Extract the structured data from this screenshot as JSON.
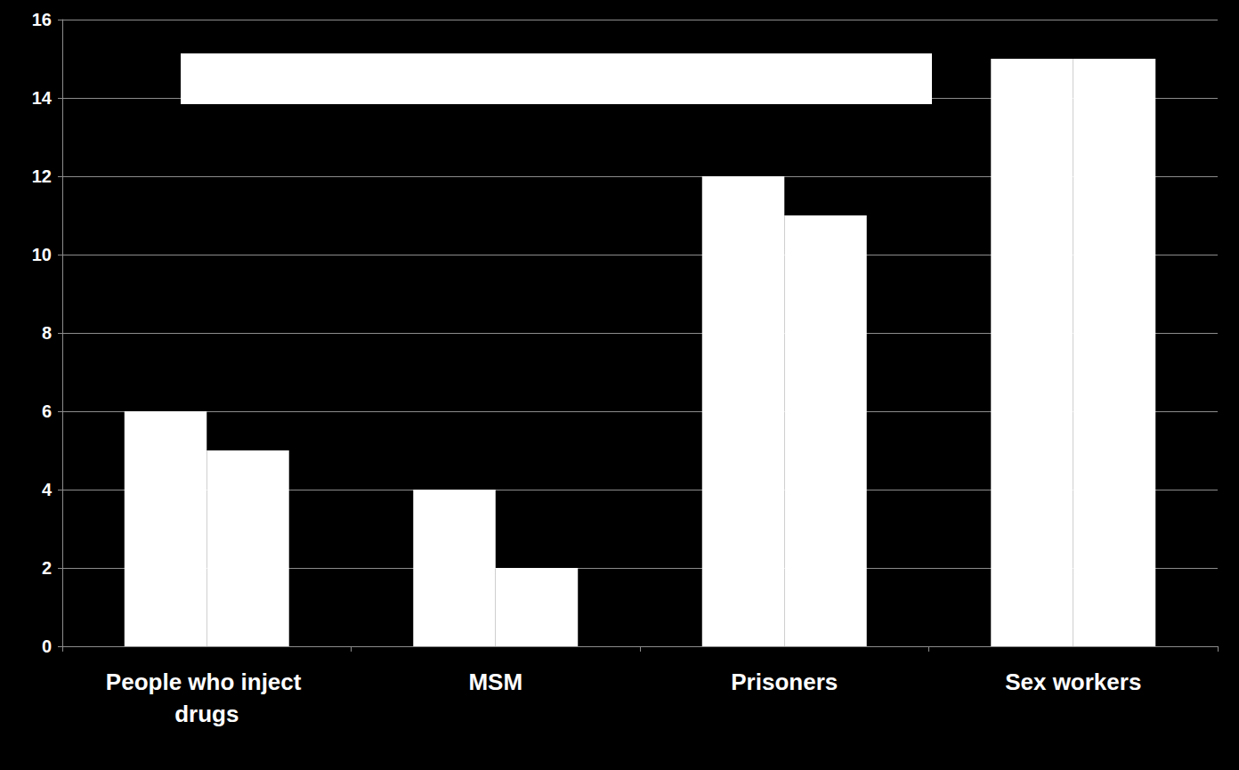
{
  "chart_data": {
    "type": "bar",
    "categories": [
      "People who inject drugs",
      "MSM",
      "Prisoners",
      "Sex workers"
    ],
    "series": [
      {
        "color": "#ffffff",
        "values": [
          6,
          4,
          12,
          15
        ]
      },
      {
        "color": "#ffffff",
        "values": [
          5,
          2,
          11,
          15
        ]
      }
    ],
    "ylim": [
      0,
      16
    ],
    "yticks": [
      0,
      2,
      4,
      6,
      8,
      10,
      12,
      14,
      16
    ],
    "grid": true
  }
}
